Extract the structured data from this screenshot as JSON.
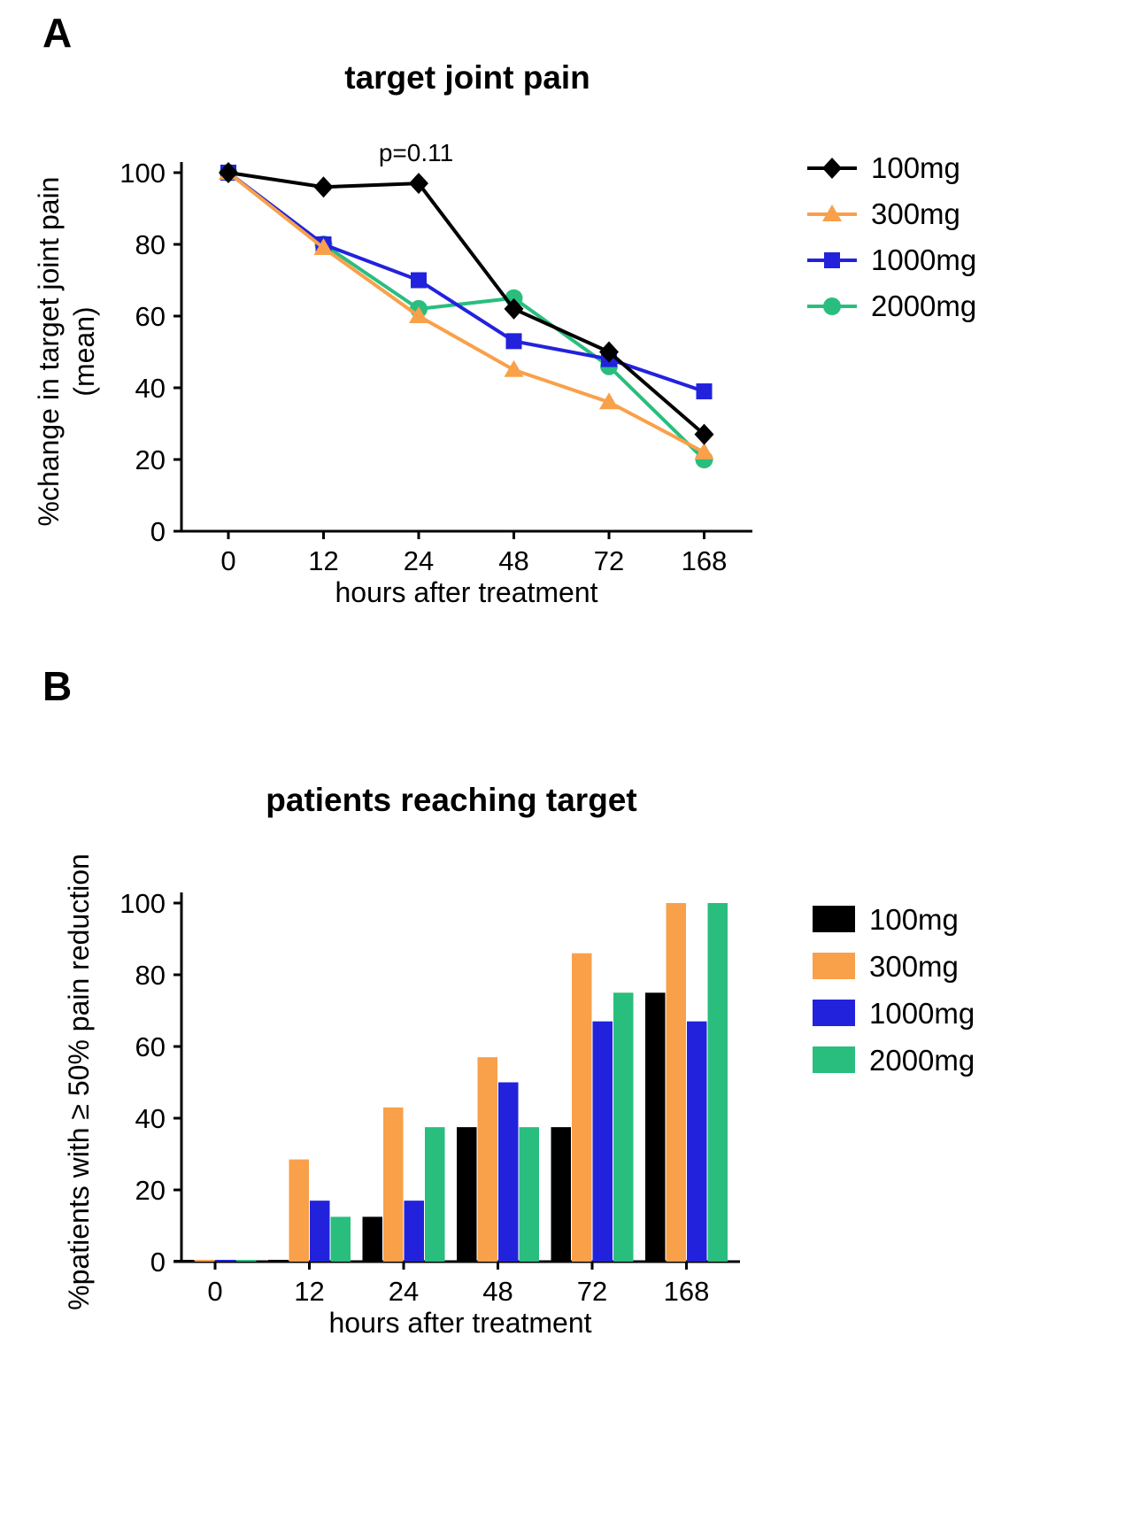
{
  "panels": [
    {
      "label": "A"
    },
    {
      "label": "B"
    }
  ],
  "chart_data": [
    {
      "type": "line",
      "title": "target joint pain",
      "xlabel": "hours after treatment",
      "ylabel": "%change in target joint pain (mean)",
      "ylabel_lines": [
        "%change in target joint pain",
        "(mean)"
      ],
      "annotation": "p=0.11",
      "categories": [
        "0",
        "12",
        "24",
        "48",
        "72",
        "168"
      ],
      "ylim": [
        0,
        100
      ],
      "yticks": [
        0,
        20,
        40,
        60,
        80,
        100
      ],
      "legend_position": "right",
      "series": [
        {
          "name": "100mg",
          "color": "#000000",
          "marker": "diamond",
          "values": [
            100,
            96,
            97,
            62,
            50,
            27
          ]
        },
        {
          "name": "300mg",
          "color": "#F9A04A",
          "marker": "triangle",
          "values": [
            100,
            79,
            60,
            45,
            36,
            22
          ]
        },
        {
          "name": "1000mg",
          "color": "#2222DD",
          "marker": "square",
          "values": [
            100,
            80,
            70,
            53,
            48,
            39
          ]
        },
        {
          "name": "2000mg",
          "color": "#29BE7E",
          "marker": "circle",
          "values": [
            100,
            80,
            62,
            65,
            46,
            20
          ]
        }
      ]
    },
    {
      "type": "bar",
      "title": "patients reaching target",
      "xlabel": "hours after treatment",
      "ylabel": "%patients with ≥ 50% pain reduction",
      "categories": [
        "0",
        "12",
        "24",
        "48",
        "72",
        "168"
      ],
      "ylim": [
        0,
        100
      ],
      "yticks": [
        0,
        20,
        40,
        60,
        80,
        100
      ],
      "legend_position": "right",
      "series": [
        {
          "name": "100mg",
          "color": "#000000",
          "values": [
            0.5,
            0.5,
            12.5,
            37.5,
            37.5,
            75
          ]
        },
        {
          "name": "300mg",
          "color": "#F9A04A",
          "values": [
            0.5,
            28.5,
            43,
            57,
            86,
            100
          ]
        },
        {
          "name": "1000mg",
          "color": "#2222DD",
          "values": [
            0.5,
            17,
            17,
            50,
            67,
            67
          ]
        },
        {
          "name": "2000mg",
          "color": "#29BE7E",
          "values": [
            0.5,
            12.5,
            37.5,
            37.5,
            75,
            100
          ]
        }
      ]
    }
  ]
}
